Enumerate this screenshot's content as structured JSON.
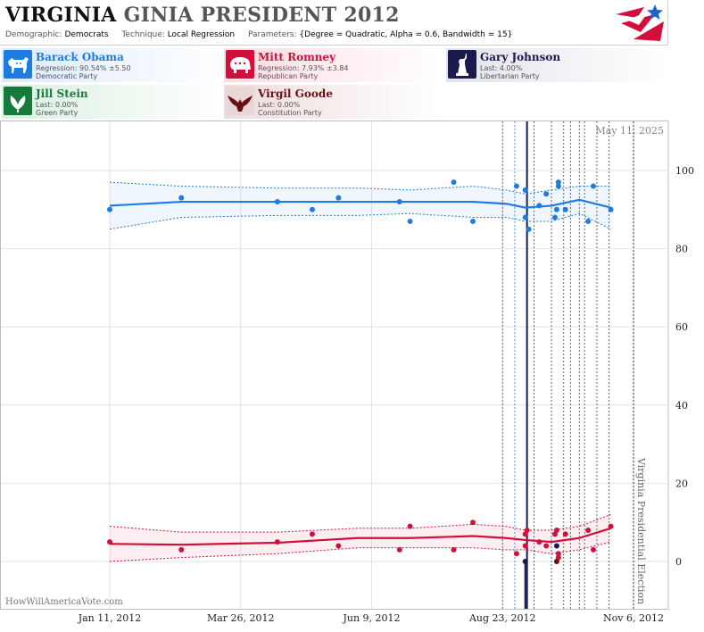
{
  "header": {
    "title_state": "VIRGINIA",
    "title_rest": "GINIA PRESIDENT 2012",
    "demographic_label": "Demographic:",
    "demographic_value": "Democrats",
    "technique_label": "Technique:",
    "technique_value": "Local Regression",
    "parameters_label": "Parameters:",
    "parameters_value": "{Degree = Quadratic, Alpha = 0.6, Bandwidth = 15}"
  },
  "legend": [
    {
      "name": "Barack Obama",
      "line1": "Regression: 90.54% ±5.50",
      "line2": "Democratic Party",
      "color": "#1e7be0",
      "bg": "#e3efff",
      "icon": "donkey-icon"
    },
    {
      "name": "Mitt Romney",
      "line1": "Regression: 7.93% ±3.84",
      "line2": "Republican Party",
      "color": "#d0103a",
      "bg": "#fde3e8",
      "icon": "elephant-icon"
    },
    {
      "name": "Gary Johnson",
      "line1": "Last: 4.00%",
      "line2": "Libertarian Party",
      "color": "#1a1a4e",
      "bg": "#e6e6ee",
      "icon": "liberty-statue-icon"
    },
    {
      "name": "Jill Stein",
      "line1": "Last: 0.00%",
      "line2": "Green Party",
      "color": "#157a3a",
      "bg": "#e2f2e6",
      "icon": "leaf-icon"
    },
    {
      "name": "Virgil Goode",
      "line1": "Last: 0.00%",
      "line2": "Constitution Party",
      "color": "#6a0f14",
      "bg": "#f1e2e2",
      "icon": "eagle-icon"
    }
  ],
  "chart_data": {
    "type": "line",
    "date_label": "May 11, 2025",
    "watermark": "HowWillAmericaVote.com",
    "election_label": "Virginia Presidential Election",
    "x_ticks": [
      "Jan 11, 2012",
      "Mar 26, 2012",
      "Jun 9, 2012",
      "Aug 23, 2012",
      "Nov 6, 2012"
    ],
    "xlim": [
      "2012-01-11",
      "2012-11-06"
    ],
    "y_ticks": [
      0,
      20,
      40,
      60,
      80,
      100
    ],
    "ylim": [
      -12,
      113
    ],
    "grid": true,
    "poll_dates": [
      "2012-08-23",
      "2012-08-30",
      "2012-09-10",
      "2012-09-20",
      "2012-09-27",
      "2012-10-01",
      "2012-10-06",
      "2012-10-09",
      "2012-10-16",
      "2012-10-23",
      "2012-11-06"
    ],
    "convention_date": "2012-09-06",
    "election_date": "2012-11-06",
    "series": [
      {
        "name": "Barack Obama",
        "color": "#1e7be0",
        "points": [
          {
            "x": "2012-01-11",
            "y": 90
          },
          {
            "x": "2012-02-21",
            "y": 93
          },
          {
            "x": "2012-04-16",
            "y": 92
          },
          {
            "x": "2012-05-06",
            "y": 90
          },
          {
            "x": "2012-05-21",
            "y": 93
          },
          {
            "x": "2012-06-25",
            "y": 92
          },
          {
            "x": "2012-07-01",
            "y": 87
          },
          {
            "x": "2012-07-26",
            "y": 97
          },
          {
            "x": "2012-08-06",
            "y": 87
          },
          {
            "x": "2012-08-31",
            "y": 96
          },
          {
            "x": "2012-09-05",
            "y": 95
          },
          {
            "x": "2012-09-05",
            "y": 88
          },
          {
            "x": "2012-09-07",
            "y": 85
          },
          {
            "x": "2012-09-13",
            "y": 91
          },
          {
            "x": "2012-09-17",
            "y": 94
          },
          {
            "x": "2012-09-22",
            "y": 88
          },
          {
            "x": "2012-09-23",
            "y": 90
          },
          {
            "x": "2012-09-24",
            "y": 96
          },
          {
            "x": "2012-09-24",
            "y": 97
          },
          {
            "x": "2012-09-28",
            "y": 90
          },
          {
            "x": "2012-10-11",
            "y": 87
          },
          {
            "x": "2012-10-14",
            "y": 96
          },
          {
            "x": "2012-10-24",
            "y": 90
          }
        ],
        "trend": [
          {
            "x": "2012-01-11",
            "y": 91.0
          },
          {
            "x": "2012-02-21",
            "y": 92.0
          },
          {
            "x": "2012-04-16",
            "y": 92.0
          },
          {
            "x": "2012-06-01",
            "y": 92.0
          },
          {
            "x": "2012-07-01",
            "y": 92.0
          },
          {
            "x": "2012-08-06",
            "y": 92.0
          },
          {
            "x": "2012-08-25",
            "y": 91.5
          },
          {
            "x": "2012-09-05",
            "y": 90.5
          },
          {
            "x": "2012-09-20",
            "y": 91.0
          },
          {
            "x": "2012-10-06",
            "y": 92.5
          },
          {
            "x": "2012-10-24",
            "y": 90.5
          }
        ],
        "band_upper": [
          {
            "x": "2012-01-11",
            "y": 97
          },
          {
            "x": "2012-02-21",
            "y": 96
          },
          {
            "x": "2012-04-16",
            "y": 95.5
          },
          {
            "x": "2012-06-01",
            "y": 95.5
          },
          {
            "x": "2012-07-01",
            "y": 95
          },
          {
            "x": "2012-08-06",
            "y": 96
          },
          {
            "x": "2012-08-25",
            "y": 95
          },
          {
            "x": "2012-09-05",
            "y": 94
          },
          {
            "x": "2012-09-20",
            "y": 95
          },
          {
            "x": "2012-10-06",
            "y": 96
          },
          {
            "x": "2012-10-24",
            "y": 96
          }
        ],
        "band_lower": [
          {
            "x": "2012-01-11",
            "y": 85
          },
          {
            "x": "2012-02-21",
            "y": 88
          },
          {
            "x": "2012-04-16",
            "y": 88.5
          },
          {
            "x": "2012-06-01",
            "y": 88.5
          },
          {
            "x": "2012-07-01",
            "y": 89
          },
          {
            "x": "2012-08-06",
            "y": 88
          },
          {
            "x": "2012-08-25",
            "y": 88
          },
          {
            "x": "2012-09-05",
            "y": 87
          },
          {
            "x": "2012-09-20",
            "y": 87
          },
          {
            "x": "2012-10-06",
            "y": 89
          },
          {
            "x": "2012-10-24",
            "y": 85
          }
        ]
      },
      {
        "name": "Mitt Romney",
        "color": "#d0103a",
        "points": [
          {
            "x": "2012-01-11",
            "y": 5
          },
          {
            "x": "2012-02-21",
            "y": 3
          },
          {
            "x": "2012-04-16",
            "y": 5
          },
          {
            "x": "2012-05-06",
            "y": 7
          },
          {
            "x": "2012-05-21",
            "y": 4
          },
          {
            "x": "2012-06-25",
            "y": 3
          },
          {
            "x": "2012-07-01",
            "y": 9
          },
          {
            "x": "2012-07-26",
            "y": 3
          },
          {
            "x": "2012-08-06",
            "y": 10
          },
          {
            "x": "2012-08-31",
            "y": 2
          },
          {
            "x": "2012-09-05",
            "y": 4
          },
          {
            "x": "2012-09-05",
            "y": 7
          },
          {
            "x": "2012-09-06",
            "y": 8
          },
          {
            "x": "2012-09-13",
            "y": 5
          },
          {
            "x": "2012-09-17",
            "y": 4
          },
          {
            "x": "2012-09-22",
            "y": 7
          },
          {
            "x": "2012-09-23",
            "y": 8
          },
          {
            "x": "2012-09-24",
            "y": 1
          },
          {
            "x": "2012-09-24",
            "y": 2
          },
          {
            "x": "2012-09-28",
            "y": 7
          },
          {
            "x": "2012-10-11",
            "y": 8
          },
          {
            "x": "2012-10-14",
            "y": 3
          },
          {
            "x": "2012-10-24",
            "y": 9
          }
        ],
        "trend": [
          {
            "x": "2012-01-11",
            "y": 4.5
          },
          {
            "x": "2012-02-21",
            "y": 4.3
          },
          {
            "x": "2012-04-16",
            "y": 4.8
          },
          {
            "x": "2012-06-01",
            "y": 6.0
          },
          {
            "x": "2012-07-01",
            "y": 6.0
          },
          {
            "x": "2012-08-06",
            "y": 6.5
          },
          {
            "x": "2012-08-25",
            "y": 6.0
          },
          {
            "x": "2012-09-05",
            "y": 5.5
          },
          {
            "x": "2012-09-20",
            "y": 5.0
          },
          {
            "x": "2012-10-06",
            "y": 6.0
          },
          {
            "x": "2012-10-24",
            "y": 8.5
          }
        ],
        "band_upper": [
          {
            "x": "2012-01-11",
            "y": 9
          },
          {
            "x": "2012-02-21",
            "y": 7.5
          },
          {
            "x": "2012-04-16",
            "y": 7.5
          },
          {
            "x": "2012-06-01",
            "y": 8.5
          },
          {
            "x": "2012-07-01",
            "y": 8.5
          },
          {
            "x": "2012-08-06",
            "y": 9.5
          },
          {
            "x": "2012-08-25",
            "y": 9
          },
          {
            "x": "2012-09-05",
            "y": 8
          },
          {
            "x": "2012-09-20",
            "y": 8
          },
          {
            "x": "2012-10-06",
            "y": 9
          },
          {
            "x": "2012-10-24",
            "y": 12
          }
        ],
        "band_lower": [
          {
            "x": "2012-01-11",
            "y": 0
          },
          {
            "x": "2012-02-21",
            "y": 1
          },
          {
            "x": "2012-04-16",
            "y": 2
          },
          {
            "x": "2012-06-01",
            "y": 3.5
          },
          {
            "x": "2012-07-01",
            "y": 3.5
          },
          {
            "x": "2012-08-06",
            "y": 3.5
          },
          {
            "x": "2012-08-25",
            "y": 3
          },
          {
            "x": "2012-09-05",
            "y": 3
          },
          {
            "x": "2012-09-20",
            "y": 2
          },
          {
            "x": "2012-10-06",
            "y": 3
          },
          {
            "x": "2012-10-24",
            "y": 5
          }
        ]
      },
      {
        "name": "Gary Johnson",
        "color": "#1a1a4e",
        "points": [
          {
            "x": "2012-09-05",
            "y": 0
          },
          {
            "x": "2012-09-23",
            "y": 4
          }
        ]
      },
      {
        "name": "Virgil Goode",
        "color": "#6a0f14",
        "points": [
          {
            "x": "2012-09-23",
            "y": 0
          }
        ]
      }
    ]
  }
}
